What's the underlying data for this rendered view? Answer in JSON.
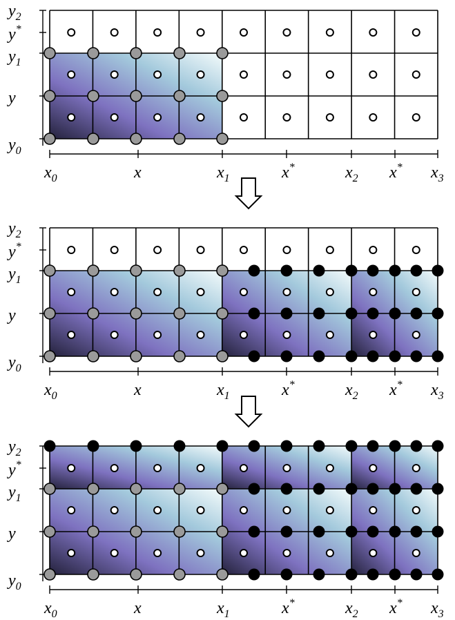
{
  "title": "",
  "panels": [
    {
      "name": "panel-1",
      "shaded_x_range": [
        "x_0",
        "x_1"
      ],
      "shaded_y_range": [
        "y_0",
        "y_1"
      ],
      "gray_nodes_region": [
        "x_0",
        "x_1",
        "y_0",
        "y_1"
      ],
      "black_nodes_region": null
    },
    {
      "name": "panel-2",
      "shaded_x_range": [
        "x_0",
        "x_3"
      ],
      "shaded_y_range": [
        "y_0",
        "y_1"
      ],
      "gray_nodes_region": [
        "x_0",
        "x_1",
        "y_0",
        "y_1"
      ],
      "black_nodes_region": [
        "x_1",
        "x_3",
        "y_0",
        "y_1"
      ]
    },
    {
      "name": "panel-3",
      "shaded_x_range": [
        "x_0",
        "x_3"
      ],
      "shaded_y_range": [
        "y_0",
        "y_2"
      ],
      "gray_nodes_region": [
        "x_0",
        "x_1",
        "y_0",
        "y_1"
      ],
      "black_nodes_region": [
        "x_0",
        "x_3",
        "y_0",
        "y_2"
      ]
    }
  ],
  "x_labels": [
    {
      "base": "x",
      "sub": "0",
      "sup": ""
    },
    {
      "base": "x",
      "sub": "",
      "sup": ""
    },
    {
      "base": "x",
      "sub": "1",
      "sup": ""
    },
    {
      "base": "x",
      "sub": "",
      "sup": "*"
    },
    {
      "base": "x",
      "sub": "2",
      "sup": ""
    },
    {
      "base": "x",
      "sub": "",
      "sup": "*"
    },
    {
      "base": "x",
      "sub": "3",
      "sup": ""
    }
  ],
  "y_labels": [
    {
      "base": "y",
      "sub": "2",
      "sup": ""
    },
    {
      "base": "y",
      "sub": "",
      "sup": "*"
    },
    {
      "base": "y",
      "sub": "1",
      "sup": ""
    },
    {
      "base": "y",
      "sub": "",
      "sup": ""
    },
    {
      "base": "y",
      "sub": "0",
      "sup": ""
    }
  ],
  "colors": {
    "gray_node": "#9a9a9a",
    "black_node": "#000000",
    "open_node": "#ffffff",
    "shade_dark": "#2c2a4a",
    "shade_mid": "#8478c4",
    "shade_light": "#e9f7f7"
  },
  "arrow_count": 2
}
